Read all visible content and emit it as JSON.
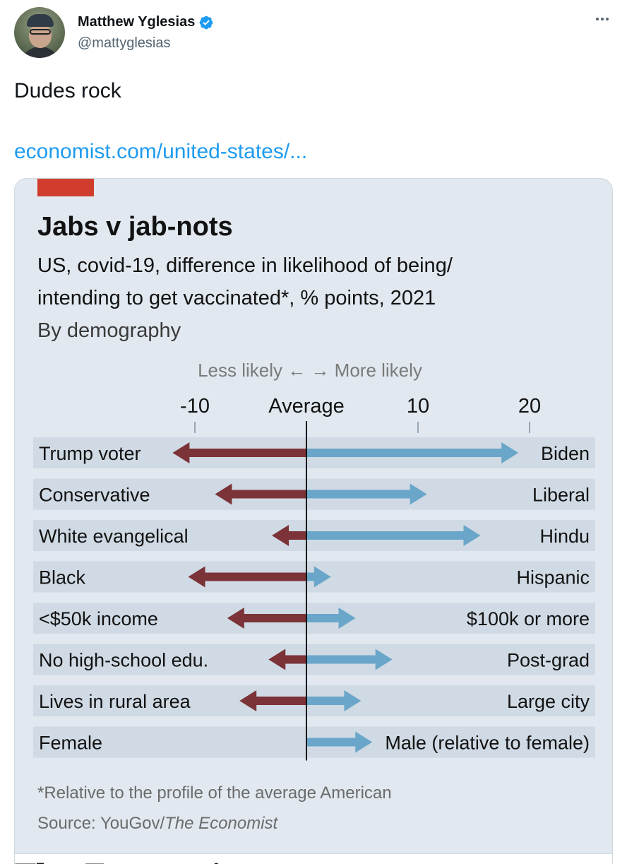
{
  "tweet": {
    "display_name": "Matthew Yglesias",
    "handle": "@mattyglesias",
    "text": "Dudes rock",
    "link_text": "economist.com/united-states/...",
    "card_footer": "The Economist"
  },
  "colors": {
    "link": "#1d9bf0",
    "verified": "#1d9bf0",
    "chart_bg": "#e1e8ef",
    "row_bg": "#d0dae4",
    "left_bar": "#7b3338",
    "right_bar": "#6aa6c9",
    "economist_red": "#d13d2c"
  },
  "chart_data": {
    "type": "bar",
    "title": "Jabs v jab-nots",
    "subtitle_line1": "US, covid-19, difference in likelihood of being/",
    "subtitle_line2": "intending to get vaccinated*, % points, 2021",
    "subtitle_line3": "By demography",
    "direction_label": "Less likely ← → More likely",
    "xlim": [
      -15,
      25
    ],
    "ticks": [
      {
        "value": -10,
        "label": "-10"
      },
      {
        "value": 0,
        "label": "Average"
      },
      {
        "value": 10,
        "label": "10"
      },
      {
        "value": 20,
        "label": "20"
      }
    ],
    "rows": [
      {
        "left_label": "Trump voter",
        "right_label": "Biden",
        "left_value": -12,
        "right_value": 19
      },
      {
        "left_label": "Conservative",
        "right_label": "Liberal",
        "left_value": -8.2,
        "right_value": 10.8
      },
      {
        "left_label": "White evangelical",
        "right_label": "Hindu",
        "left_value": -3.1,
        "right_value": 15.6
      },
      {
        "left_label": "Black",
        "right_label": "Hispanic",
        "left_value": -10.6,
        "right_value": 2.2
      },
      {
        "left_label": "<$50k income",
        "right_label": "$100k or more",
        "left_value": -7.1,
        "right_value": 4.4
      },
      {
        "left_label": "No high-school edu.",
        "right_label": "Post-grad",
        "left_value": -3.4,
        "right_value": 7.7
      },
      {
        "left_label": "Lives in rural area",
        "right_label": "Large city",
        "left_value": -6,
        "right_value": 4.9
      },
      {
        "left_label": "Female",
        "right_label": "Male (relative to female)",
        "left_value": 0,
        "right_value": 5.9
      }
    ],
    "footnote": "*Relative to the profile of the average American",
    "source_prefix": "Source: YouGov/",
    "source_italic": "The Economist"
  }
}
